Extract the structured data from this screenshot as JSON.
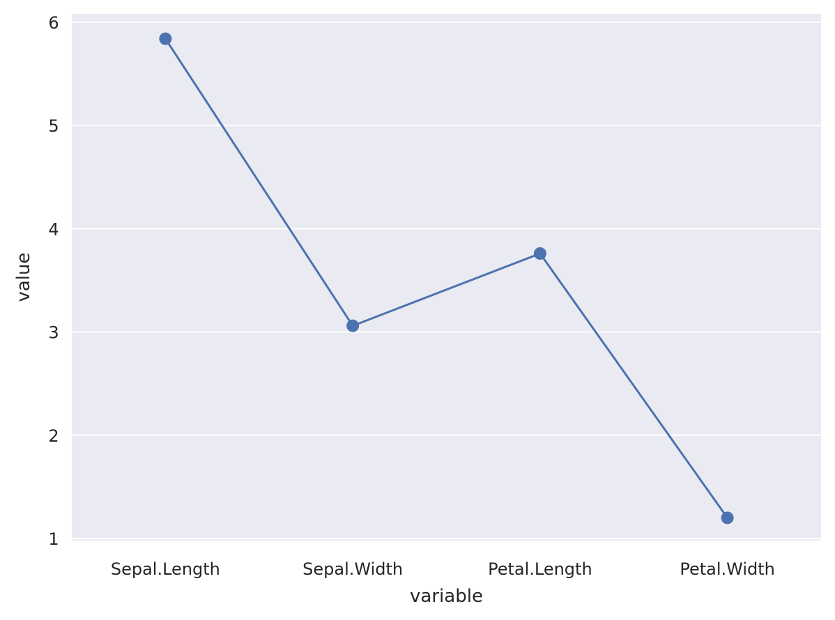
{
  "chart_data": {
    "type": "line",
    "categories": [
      "Sepal.Length",
      "Sepal.Width",
      "Petal.Length",
      "Petal.Width"
    ],
    "values": [
      5.84,
      3.06,
      3.76,
      1.2
    ],
    "xlabel": "variable",
    "ylabel": "value",
    "ylim": [
      0.98,
      6.08
    ],
    "yticks": [
      "1",
      "2",
      "3",
      "4",
      "5",
      "6"
    ],
    "grid": true,
    "colors": {
      "background": "#EAEAF2",
      "grid": "#FFFFFF",
      "series": "#4C72B0",
      "text": "#262626"
    }
  }
}
